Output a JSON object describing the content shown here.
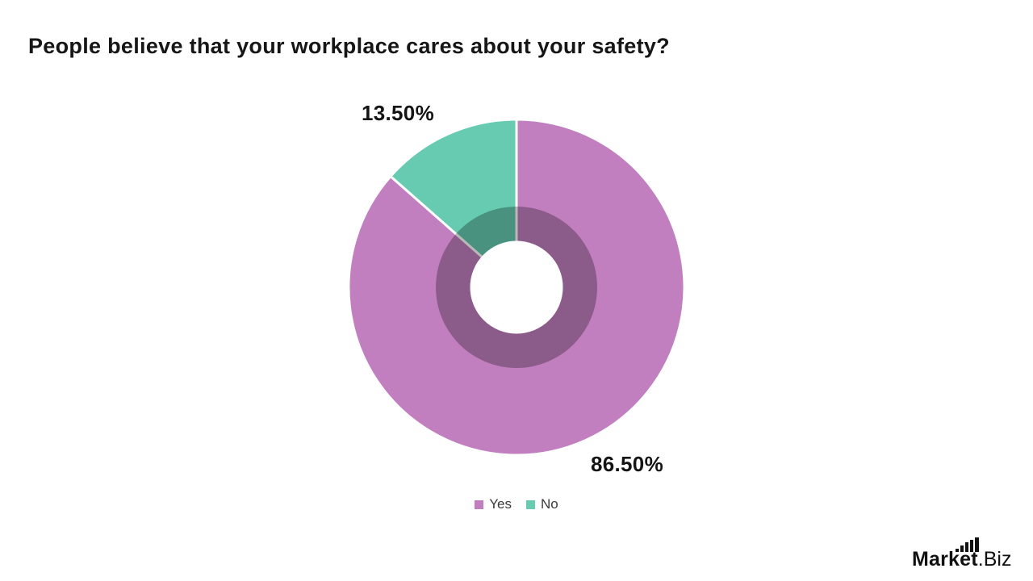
{
  "title": "People believe that your workplace cares about your safety?",
  "chart_data": {
    "type": "pie",
    "subtype": "donut-with-inner-ring",
    "title": "People believe that your workplace cares about your safety?",
    "categories": [
      "Yes",
      "No"
    ],
    "values": [
      86.5,
      13.5
    ],
    "labels": [
      "86.50%",
      "13.50%"
    ],
    "colors": [
      "#c17fc0",
      "#66cbb1"
    ],
    "inner_ring_overlay": "rgba(0,0,0,0.28)",
    "slice_separator_color": "#ffffff",
    "start_angle_deg": 0,
    "direction": "clockwise",
    "legend_position": "bottom"
  },
  "legend": {
    "items": [
      {
        "label": "Yes",
        "color": "#c17fc0"
      },
      {
        "label": "No",
        "color": "#66cbb1"
      }
    ]
  },
  "branding": {
    "name_bold": "Market",
    "name_rest": ".Biz"
  }
}
